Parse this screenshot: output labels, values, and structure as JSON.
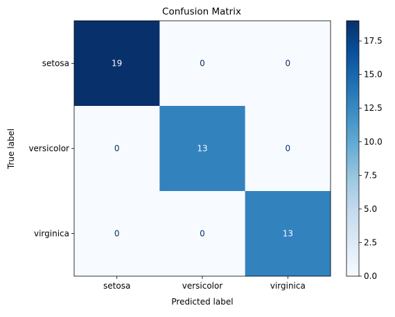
{
  "chart_data": {
    "type": "heatmap",
    "title": "Confusion Matrix",
    "xlabel": "Predicted label",
    "ylabel": "True label",
    "x_categories": [
      "setosa",
      "versicolor",
      "virginica"
    ],
    "y_categories": [
      "setosa",
      "versicolor",
      "virginica"
    ],
    "values": [
      [
        19,
        0,
        0
      ],
      [
        0,
        13,
        0
      ],
      [
        0,
        0,
        13
      ]
    ],
    "colormap": "Blues",
    "colorbar": {
      "range": [
        0,
        19
      ],
      "ticks": [
        "0.0",
        "2.5",
        "5.0",
        "7.5",
        "10.0",
        "12.5",
        "15.0",
        "17.5"
      ]
    },
    "colors": {
      "low": "#f7fbff",
      "mid": "#3181bd",
      "high": "#08306b",
      "text_dark": "#08306b",
      "text_light": "#f7fbff"
    }
  }
}
